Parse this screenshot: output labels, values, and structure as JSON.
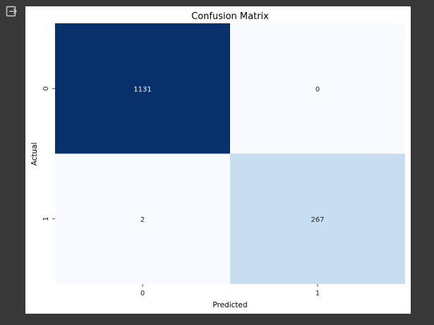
{
  "toolbar": {
    "output_icon": "exit-to-app-icon"
  },
  "colors": {
    "page_background": "#383838",
    "figure_background": "#ffffff",
    "cmap_low": "#f7fbff",
    "cmap_high": "#08306b",
    "text_dark": "#262626",
    "text_light": "#ffffff"
  },
  "chart_data": {
    "type": "heatmap",
    "title": "Confusion Matrix",
    "xlabel": "Predicted",
    "ylabel": "Actual",
    "x_categories": [
      "0",
      "1"
    ],
    "y_categories": [
      "0",
      "1"
    ],
    "values": [
      [
        1131,
        0
      ],
      [
        2,
        267
      ]
    ],
    "colorscale": "Blues",
    "colorbar": false,
    "annotations": true
  }
}
